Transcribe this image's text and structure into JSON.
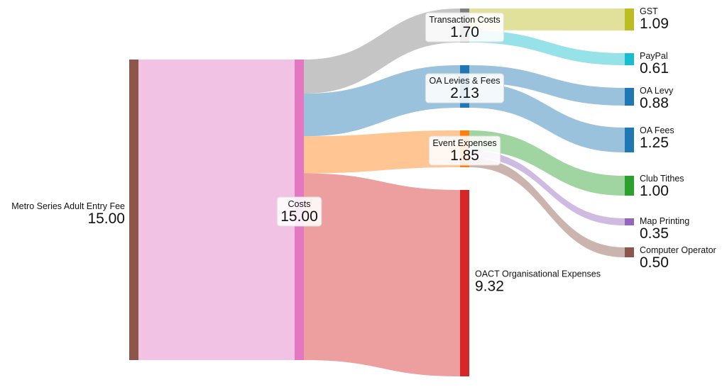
{
  "chart_data": {
    "type": "sankey",
    "title": "",
    "nodes": [
      {
        "id": "entry",
        "name": "Metro Series Adult Entry Fee",
        "value": "15.00",
        "color": "#8c564b"
      },
      {
        "id": "costs",
        "name": "Costs",
        "value": "15.00",
        "color": "#e377c2"
      },
      {
        "id": "transaction",
        "name": "Transaction Costs",
        "value": "1.70",
        "color": "#7f7f7f"
      },
      {
        "id": "oa_levies",
        "name": "OA Levies & Fees",
        "value": "2.13",
        "color": "#1f77b4"
      },
      {
        "id": "event",
        "name": "Event Expenses",
        "value": "1.85",
        "color": "#ff7f0e"
      },
      {
        "id": "oact",
        "name": "OACT Organisational Expenses",
        "value": "9.32",
        "color": "#d62728"
      },
      {
        "id": "gst",
        "name": "GST",
        "value": "1.09",
        "color": "#bcbd22"
      },
      {
        "id": "paypal",
        "name": "PayPal",
        "value": "0.61",
        "color": "#17becf"
      },
      {
        "id": "oa_levy",
        "name": "OA Levy",
        "value": "0.88",
        "color": "#1f77b4"
      },
      {
        "id": "oa_fees",
        "name": "OA Fees",
        "value": "1.25",
        "color": "#1f77b4"
      },
      {
        "id": "club_tithes",
        "name": "Club Tithes",
        "value": "1.00",
        "color": "#2ca02c"
      },
      {
        "id": "map_printing",
        "name": "Map Printing",
        "value": "0.35",
        "color": "#9467bd"
      },
      {
        "id": "computer_operator",
        "name": "Computer Operator",
        "value": "0.50",
        "color": "#8c564b"
      }
    ],
    "links": [
      {
        "source": "entry",
        "target": "costs",
        "value": 15.0,
        "color": "#e377c2"
      },
      {
        "source": "costs",
        "target": "transaction",
        "value": 1.7,
        "color": "#7f7f7f"
      },
      {
        "source": "costs",
        "target": "oa_levies",
        "value": 2.13,
        "color": "#1f77b4"
      },
      {
        "source": "costs",
        "target": "event",
        "value": 1.85,
        "color": "#ff7f0e"
      },
      {
        "source": "costs",
        "target": "oact",
        "value": 9.32,
        "color": "#d62728"
      },
      {
        "source": "transaction",
        "target": "gst",
        "value": 1.09,
        "color": "#bcbd22"
      },
      {
        "source": "transaction",
        "target": "paypal",
        "value": 0.61,
        "color": "#17becf"
      },
      {
        "source": "oa_levies",
        "target": "oa_levy",
        "value": 0.88,
        "color": "#1f77b4"
      },
      {
        "source": "oa_levies",
        "target": "oa_fees",
        "value": 1.25,
        "color": "#1f77b4"
      },
      {
        "source": "event",
        "target": "club_tithes",
        "value": 1.0,
        "color": "#2ca02c"
      },
      {
        "source": "event",
        "target": "map_printing",
        "value": 0.35,
        "color": "#9467bd"
      },
      {
        "source": "event",
        "target": "computer_operator",
        "value": 0.5,
        "color": "#8c564b"
      }
    ]
  }
}
